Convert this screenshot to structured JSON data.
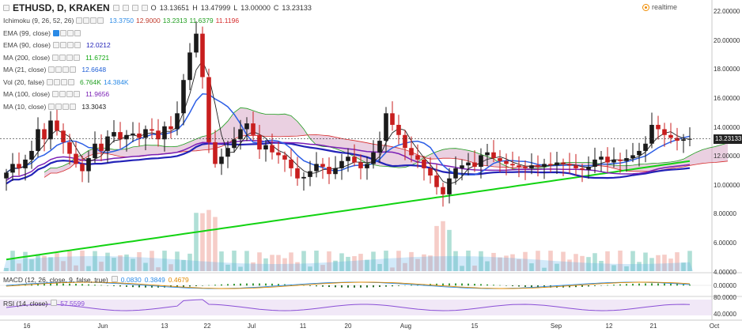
{
  "header": {
    "symbol": "ETHUSD, D, KRAKEN",
    "o_label": "O",
    "o": "13.13651",
    "h_label": "H",
    "h": "13.47999",
    "l_label": "L",
    "l": "13.00000",
    "c_label": "C",
    "c": "13.23133",
    "realtime": "realtime"
  },
  "indicators": [
    {
      "label": "Ichimoku (9, 26, 52, 26)",
      "values": [
        "13.3750",
        "12.9000",
        "13.2313",
        "11.6379",
        "11.1196"
      ],
      "colors": [
        "#2a8ae6",
        "#c0392b",
        "#1f9e1f",
        "#1f9e1f",
        "#d62b2b"
      ]
    },
    {
      "label": "EMA (99, close)",
      "values": [],
      "colors": []
    },
    {
      "label": "EMA (90, close)",
      "values": [
        "12.0212"
      ],
      "colors": [
        "#2323b8"
      ]
    },
    {
      "label": "MA (200, close)",
      "values": [
        "11.6721"
      ],
      "colors": [
        "#12a812"
      ]
    },
    {
      "label": "MA (21, close)",
      "values": [
        "12.6648"
      ],
      "colors": [
        "#1f5fd6"
      ]
    },
    {
      "label": "Vol (20, false)",
      "values": [
        "6.764K",
        "14.384K"
      ],
      "colors": [
        "#1f9e1f",
        "#2a8ae6"
      ]
    },
    {
      "label": "MA (100, close)",
      "values": [
        "11.9656"
      ],
      "colors": [
        "#7a1fb5"
      ]
    },
    {
      "label": "MA (10, close)",
      "values": [
        "13.3043"
      ],
      "colors": [
        "#222222"
      ]
    }
  ],
  "y_axis": [
    "22.00000",
    "20.00000",
    "18.00000",
    "16.00000",
    "14.00000",
    "12.00000",
    "10.00000",
    "8.00000",
    "6.00000",
    "4.00000"
  ],
  "price_tag": "13.23133",
  "x_axis": [
    "16",
    "Jun",
    "13",
    "22",
    "Jul",
    "11",
    "20",
    "Aug",
    "15",
    "Sep",
    "12",
    "21",
    "Oct"
  ],
  "macd": {
    "label": "MACD (12, 26, close, 9, false, true)",
    "values": [
      "0.0830",
      "0.3849",
      "0.4679"
    ],
    "colors": [
      "#2a8ae6",
      "#2a8ae6",
      "#e08a00"
    ],
    "axis": "0.00000"
  },
  "rsi": {
    "label": "RSI (14, close)",
    "value": "57.5599",
    "color": "#8a4fd6",
    "axis": [
      "80.0000",
      "40.0000"
    ]
  },
  "colors": {
    "up": "#1a1a1a",
    "down": "#c81e1e",
    "cloud": "#d9a9c9",
    "ma200": "#12d312",
    "ema90": "#2323b8",
    "ma21": "#2d5fe6",
    "ma100": "#7a1fb5"
  },
  "chart_data": {
    "type": "candlestick",
    "ylim": [
      3.0,
      22.5
    ],
    "close": [
      10.9,
      11.5,
      11.2,
      11.8,
      12.4,
      13.9,
      13.2,
      14.5,
      13.8,
      13.0,
      12.2,
      11.5,
      11.0,
      11.9,
      12.9,
      12.4,
      13.4,
      13.7,
      13.2,
      13.5,
      13.6,
      13.3,
      13.9,
      13.8,
      13.2,
      14.1,
      13.9,
      15.0,
      17.3,
      19.2,
      20.5,
      17.5,
      13.0,
      11.5,
      12.0,
      12.6,
      13.2,
      13.9,
      14.3,
      13.5,
      12.5,
      12.8,
      12.3,
      12.1,
      11.8,
      11.2,
      10.5,
      10.6,
      11.0,
      11.5,
      11.3,
      10.8,
      11.2,
      11.7,
      12.0,
      11.6,
      11.2,
      11.5,
      12.3,
      13.1,
      15.0,
      14.2,
      13.5,
      12.6,
      12.1,
      11.8,
      11.2,
      10.7,
      9.9,
      9.4,
      10.5,
      11.2,
      11.4,
      11.6,
      11.3,
      12.1,
      12.3,
      11.9,
      11.7,
      11.5,
      11.4,
      11.3,
      11.2,
      11.4,
      11.3,
      11.5,
      11.4,
      11.6,
      11.5,
      11.4,
      11.2,
      11.1,
      11.3,
      11.8,
      12.0,
      11.6,
      11.8,
      11.7,
      11.9,
      12.1,
      12.4,
      12.9,
      14.2,
      13.9,
      13.5,
      13.3,
      13.1,
      13.2,
      13.23
    ]
  }
}
